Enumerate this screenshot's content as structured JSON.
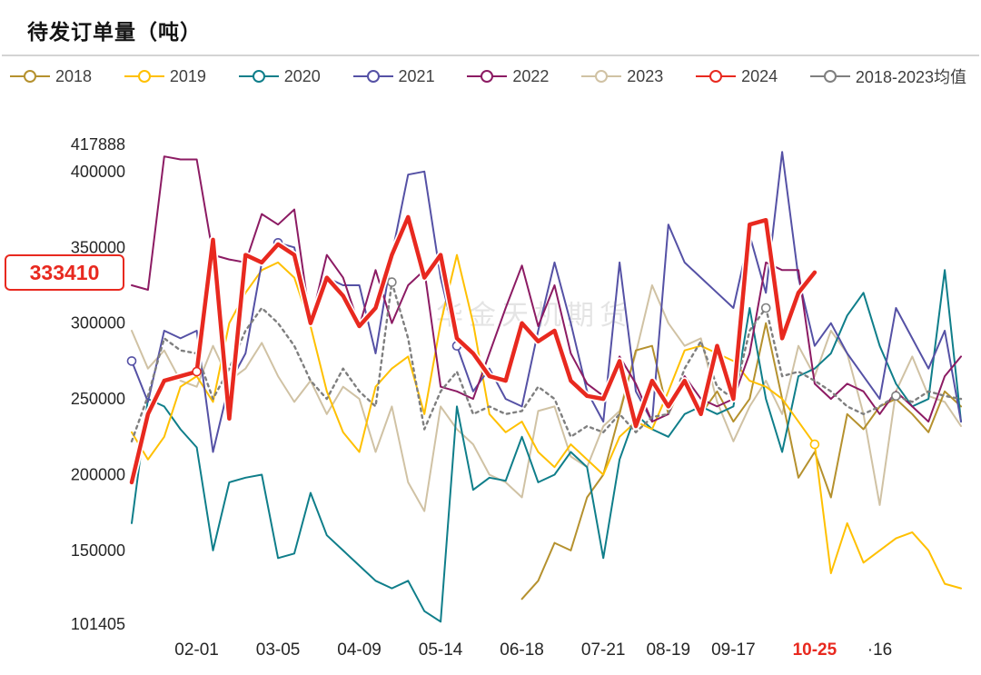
{
  "title": "待发订单量（吨）",
  "chart_data": {
    "type": "line",
    "title": "待发订单量（吨）",
    "watermark": "华金天机期货",
    "grid": false,
    "legend_position": "top",
    "x_count": 52,
    "ylim": [
      101405,
      417888
    ],
    "y_ticks": [
      417888,
      400000,
      350000,
      300000,
      250000,
      200000,
      150000,
      101405
    ],
    "x_ticks": [
      {
        "label": "02-01",
        "index": 4,
        "emphasis": false
      },
      {
        "label": "03-05",
        "index": 9,
        "emphasis": false
      },
      {
        "label": "04-09",
        "index": 14,
        "emphasis": false
      },
      {
        "label": "05-14",
        "index": 19,
        "emphasis": false
      },
      {
        "label": "06-18",
        "index": 24,
        "emphasis": false
      },
      {
        "label": "07-21",
        "index": 29,
        "emphasis": false
      },
      {
        "label": "08-19",
        "index": 33,
        "emphasis": false
      },
      {
        "label": "09-17",
        "index": 37,
        "emphasis": false
      },
      {
        "label": "10-25",
        "index": 42,
        "emphasis": true
      },
      {
        "label": "·16",
        "index": 46,
        "emphasis": false
      }
    ],
    "annotation": {
      "label": "333410",
      "value": 333410,
      "color": "#e8291f"
    },
    "series": [
      {
        "id": "2018",
        "name": "2018",
        "color": "#b5912e",
        "width": 2,
        "z": 2,
        "markers": [],
        "values": [
          null,
          null,
          null,
          null,
          null,
          null,
          null,
          null,
          null,
          null,
          null,
          null,
          null,
          null,
          null,
          null,
          null,
          null,
          null,
          null,
          null,
          null,
          null,
          null,
          118000,
          130000,
          155000,
          150000,
          185000,
          200000,
          240000,
          282000,
          285000,
          240000,
          262000,
          240000,
          255000,
          235000,
          250000,
          300000,
          250000,
          198000,
          215000,
          185000,
          240000,
          230000,
          245000,
          250000,
          240000,
          228000,
          255000,
          245000
        ]
      },
      {
        "id": "2019",
        "name": "2019",
        "color": "#ffc000",
        "width": 2,
        "z": 4,
        "markers": [
          42
        ],
        "values": [
          228000,
          210000,
          225000,
          258000,
          265000,
          248000,
          300000,
          320000,
          335000,
          340000,
          330000,
          298000,
          255000,
          228000,
          215000,
          258000,
          270000,
          278000,
          240000,
          300000,
          345000,
          300000,
          240000,
          228000,
          235000,
          215000,
          205000,
          220000,
          210000,
          200000,
          225000,
          235000,
          230000,
          255000,
          282000,
          285000,
          280000,
          275000,
          262000,
          258000,
          250000,
          235000,
          220000,
          135000,
          168000,
          142000,
          150000,
          158000,
          162000,
          150000,
          128000,
          125000
        ]
      },
      {
        "id": "2020",
        "name": "2020",
        "color": "#0f7e8a",
        "width": 2,
        "z": 3,
        "markers": [],
        "values": [
          168000,
          250000,
          245000,
          230000,
          218000,
          150000,
          195000,
          198000,
          200000,
          145000,
          148000,
          188000,
          160000,
          150000,
          140000,
          130000,
          125000,
          130000,
          110000,
          103000,
          245000,
          190000,
          198000,
          196000,
          225000,
          195000,
          200000,
          215000,
          205000,
          145000,
          210000,
          240000,
          230000,
          225000,
          240000,
          245000,
          240000,
          245000,
          310000,
          250000,
          215000,
          265000,
          270000,
          280000,
          305000,
          320000,
          285000,
          260000,
          245000,
          250000,
          335000,
          235000
        ]
      },
      {
        "id": "2021",
        "name": "2021",
        "color": "#5551a5",
        "width": 2,
        "z": 5,
        "markers": [
          0,
          9,
          20
        ],
        "values": [
          275000,
          248000,
          295000,
          290000,
          295000,
          215000,
          260000,
          280000,
          340000,
          353000,
          350000,
          300000,
          330000,
          325000,
          325000,
          280000,
          345000,
          398000,
          400000,
          330000,
          285000,
          255000,
          270000,
          250000,
          245000,
          295000,
          340000,
          300000,
          255000,
          235000,
          340000,
          255000,
          235000,
          365000,
          340000,
          330000,
          320000,
          310000,
          358000,
          320000,
          413000,
          330000,
          285000,
          300000,
          280000,
          265000,
          250000,
          310000,
          290000,
          270000,
          295000,
          235000
        ]
      },
      {
        "id": "2022",
        "name": "2022",
        "color": "#8c1b63",
        "width": 2,
        "z": 6,
        "markers": [],
        "values": [
          325000,
          322000,
          410000,
          408000,
          408000,
          345000,
          342000,
          340000,
          372000,
          365000,
          375000,
          300000,
          345000,
          330000,
          298000,
          335000,
          300000,
          325000,
          335000,
          258000,
          255000,
          250000,
          280000,
          310000,
          338000,
          298000,
          325000,
          280000,
          260000,
          252000,
          278000,
          260000,
          235000,
          240000,
          265000,
          250000,
          245000,
          250000,
          280000,
          340000,
          335000,
          335000,
          260000,
          250000,
          260000,
          255000,
          240000,
          255000,
          245000,
          235000,
          265000,
          278000
        ]
      },
      {
        "id": "2023",
        "name": "2023",
        "color": "#d0c2a4",
        "width": 2,
        "z": 1,
        "markers": [],
        "values": [
          295000,
          270000,
          282000,
          262000,
          258000,
          285000,
          262000,
          270000,
          287000,
          265000,
          248000,
          262000,
          240000,
          258000,
          250000,
          215000,
          245000,
          195000,
          176000,
          245000,
          230000,
          220000,
          200000,
          195000,
          185000,
          242000,
          245000,
          212000,
          205000,
          232000,
          242000,
          280000,
          325000,
          300000,
          285000,
          290000,
          248000,
          222000,
          245000,
          262000,
          240000,
          285000,
          265000,
          295000,
          280000,
          240000,
          180000,
          255000,
          278000,
          252000,
          248000,
          232000
        ]
      },
      {
        "id": "2024",
        "name": "2024",
        "color": "#e8291f",
        "width": 4.5,
        "z": 9,
        "casing": true,
        "markers": [
          4
        ],
        "values": [
          195000,
          240000,
          262000,
          265000,
          268000,
          355000,
          237000,
          345000,
          340000,
          352000,
          345000,
          300000,
          330000,
          318000,
          298000,
          310000,
          345000,
          370000,
          330000,
          345000,
          290000,
          280000,
          265000,
          262000,
          300000,
          288000,
          295000,
          262000,
          252000,
          250000,
          275000,
          232000,
          262000,
          245000,
          262000,
          240000,
          285000,
          250000,
          365000,
          368000,
          290000,
          320000,
          333410,
          null,
          null,
          null,
          null,
          null,
          null,
          null,
          null,
          null
        ]
      },
      {
        "id": "avg-2018-2023",
        "name": "2018-2023均值",
        "color": "#7f7f7f",
        "width": 2.4,
        "z": 7,
        "dash": "3 4.5",
        "markers": [
          16,
          39,
          47
        ],
        "values": [
          222000,
          252000,
          290000,
          282000,
          280000,
          250000,
          270000,
          295000,
          310000,
          300000,
          285000,
          262000,
          250000,
          270000,
          255000,
          245000,
          327000,
          290000,
          230000,
          255000,
          268000,
          240000,
          245000,
          240000,
          242000,
          258000,
          250000,
          225000,
          232000,
          228000,
          240000,
          228000,
          238000,
          240000,
          270000,
          288000,
          258000,
          250000,
          295000,
          310000,
          265000,
          268000,
          262000,
          255000,
          245000,
          240000,
          245000,
          252000,
          248000,
          255000,
          252000,
          250000
        ]
      }
    ]
  }
}
